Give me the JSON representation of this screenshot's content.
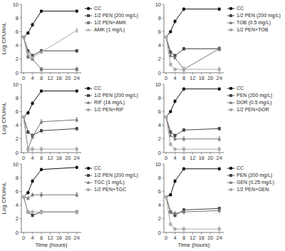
{
  "chart_data": [
    {
      "type": "line",
      "x": [
        0,
        2,
        4,
        8,
        24
      ],
      "xlim": [
        -1,
        26
      ],
      "xticks": [
        0,
        4,
        8,
        12,
        16,
        20,
        24
      ],
      "ylim": [
        0,
        10
      ],
      "yticks": [
        0,
        2,
        4,
        6,
        8,
        10
      ],
      "ylabel": "Log CFU/mL",
      "legend": "right",
      "grid": false,
      "series": [
        {
          "name": "CC",
          "color": "#111111",
          "marker": "circle",
          "values": [
            5.2,
            5.8,
            7.0,
            9.0,
            9.0
          ],
          "errors": [
            0.15,
            0.15,
            0.2,
            0.15,
            0.15
          ]
        },
        {
          "name": "1/2 PEN (200 mg/L)",
          "color": "#444444",
          "marker": "square",
          "values": [
            5.2,
            3.2,
            2.5,
            3.2,
            3.2
          ],
          "errors": [
            0.15,
            0.2,
            0.2,
            0.2,
            0.2
          ]
        },
        {
          "name": "1/2 PEN+AMK",
          "color": "#777777",
          "marker": "square",
          "values": [
            5.2,
            2.3,
            2.0,
            0.5,
            0.5
          ],
          "errors": [
            0.15,
            0.2,
            0.2,
            0.3,
            0.3
          ]
        },
        {
          "name": "AMK (1 mg/L)",
          "color": "#aaaaaa",
          "marker": "triangle",
          "values": [
            5.2,
            2.8,
            2.2,
            3.0,
            6.2
          ],
          "errors": [
            0.15,
            0.2,
            0.2,
            0.2,
            0.3
          ]
        }
      ]
    },
    {
      "type": "line",
      "x": [
        0,
        2,
        4,
        8,
        24
      ],
      "xlim": [
        -1,
        26
      ],
      "xticks": [
        0,
        4,
        8,
        12,
        16,
        20,
        24
      ],
      "ylim": [
        0,
        10
      ],
      "yticks": [
        0,
        2,
        4,
        6,
        8,
        10
      ],
      "legend": "right",
      "grid": false,
      "series": [
        {
          "name": "CC",
          "color": "#111111",
          "marker": "circle",
          "values": [
            5.2,
            6.0,
            7.5,
            9.3,
            9.3
          ],
          "errors": [
            0.15,
            0.15,
            0.2,
            0.15,
            0.15
          ]
        },
        {
          "name": "1/2 PEN (200 mg/L)",
          "color": "#444444",
          "marker": "square",
          "values": [
            5.2,
            3.0,
            2.5,
            3.5,
            3.5
          ],
          "errors": [
            0.15,
            0.2,
            0.2,
            0.2,
            0.2
          ]
        },
        {
          "name": "TOB (0.5 mg/L)",
          "color": "#777777",
          "marker": "triangle",
          "values": [
            5.2,
            2.5,
            2.2,
            0.5,
            3.5
          ],
          "errors": [
            0.15,
            0.2,
            0.2,
            0.3,
            0.3
          ]
        },
        {
          "name": "1/2 PEN+TOB",
          "color": "#aaaaaa",
          "marker": "square",
          "values": [
            5.2,
            1.2,
            0.5,
            0.5,
            0.5
          ],
          "errors": [
            0.15,
            0.2,
            0.2,
            0.3,
            0.3
          ]
        }
      ]
    },
    {
      "type": "line",
      "x": [
        0,
        2,
        4,
        8,
        24
      ],
      "xlim": [
        -1,
        26
      ],
      "xticks": [
        0,
        4,
        8,
        12,
        16,
        20,
        24
      ],
      "ylim": [
        0,
        10
      ],
      "yticks": [
        0,
        2,
        4,
        6,
        8,
        10
      ],
      "ylabel": "Log CFU/mL",
      "legend": "right",
      "grid": false,
      "series": [
        {
          "name": "CC",
          "color": "#111111",
          "marker": "circle",
          "values": [
            5.2,
            5.8,
            7.2,
            9.0,
            9.0
          ],
          "errors": [
            0.15,
            0.15,
            0.2,
            0.15,
            0.15
          ]
        },
        {
          "name": "1/2 PEN (200 mg/L)",
          "color": "#444444",
          "marker": "square",
          "values": [
            5.2,
            3.0,
            2.5,
            3.2,
            3.5
          ],
          "errors": [
            0.15,
            0.2,
            0.2,
            0.2,
            0.2
          ]
        },
        {
          "name": "RIF (16 mg/L)",
          "color": "#777777",
          "marker": "triangle",
          "values": [
            5.2,
            0.5,
            2.3,
            4.5,
            4.8
          ],
          "errors": [
            0.15,
            0.3,
            0.3,
            0.3,
            0.3
          ]
        },
        {
          "name": "1/2 PEN+RIF",
          "color": "#aaaaaa",
          "marker": "square",
          "values": [
            5.2,
            0.5,
            0.5,
            0.5,
            0.5
          ],
          "errors": [
            0.15,
            0.3,
            0.3,
            0.3,
            0.3
          ]
        }
      ]
    },
    {
      "type": "line",
      "x": [
        0,
        2,
        4,
        8,
        24
      ],
      "xlim": [
        -1,
        26
      ],
      "xticks": [
        0,
        4,
        8,
        12,
        16,
        20,
        24
      ],
      "ylim": [
        0,
        10
      ],
      "yticks": [
        0,
        2,
        4,
        6,
        8,
        10
      ],
      "legend": "right",
      "grid": false,
      "series": [
        {
          "name": "CC",
          "color": "#111111",
          "marker": "circle",
          "values": [
            5.2,
            6.0,
            7.5,
            9.3,
            9.3
          ],
          "errors": [
            0.15,
            0.15,
            0.2,
            0.15,
            0.15
          ]
        },
        {
          "name": "PEN (200 mg/L)",
          "color": "#444444",
          "marker": "square",
          "values": [
            5.2,
            3.0,
            2.5,
            3.3,
            3.5
          ],
          "errors": [
            0.15,
            0.2,
            0.2,
            0.2,
            0.2
          ]
        },
        {
          "name": "DOR (0.5 mg/L)",
          "color": "#777777",
          "marker": "triangle",
          "values": [
            5.2,
            2.5,
            2.0,
            2.0,
            2.0
          ],
          "errors": [
            0.15,
            0.2,
            0.2,
            0.3,
            0.3
          ]
        },
        {
          "name": "1/2 PEN+DOR",
          "color": "#aaaaaa",
          "marker": "square",
          "values": [
            5.2,
            1.2,
            0.5,
            0.5,
            0.5
          ],
          "errors": [
            0.15,
            0.2,
            0.2,
            0.3,
            0.3
          ]
        }
      ]
    },
    {
      "type": "line",
      "x": [
        0,
        2,
        4,
        8,
        24
      ],
      "xlim": [
        -1,
        26
      ],
      "xticks": [
        0,
        4,
        8,
        12,
        16,
        20,
        24
      ],
      "ylim": [
        0,
        10
      ],
      "yticks": [
        0,
        2,
        4,
        6,
        8,
        10
      ],
      "xlabel": "Time (hours)",
      "ylabel": "Log CFU/mL",
      "legend": "right",
      "grid": false,
      "series": [
        {
          "name": "CC",
          "color": "#111111",
          "marker": "circle",
          "values": [
            5.2,
            5.8,
            7.5,
            9.2,
            9.5
          ],
          "errors": [
            0.15,
            0.15,
            0.2,
            0.15,
            0.15
          ]
        },
        {
          "name": "1/2 PEN (200 mg/L)",
          "color": "#444444",
          "marker": "square",
          "values": [
            5.2,
            3.0,
            2.5,
            3.0,
            3.0
          ],
          "errors": [
            0.15,
            0.2,
            0.2,
            0.2,
            0.2
          ]
        },
        {
          "name": "TGC (1 mg/L)",
          "color": "#777777",
          "marker": "triangle",
          "values": [
            5.2,
            5.0,
            5.5,
            5.5,
            5.5
          ],
          "errors": [
            0.15,
            0.2,
            0.2,
            0.3,
            0.3
          ]
        },
        {
          "name": "1/2 PEN+TGC",
          "color": "#aaaaaa",
          "marker": "square",
          "values": [
            5.2,
            3.0,
            3.0,
            3.0,
            3.0
          ],
          "errors": [
            0.15,
            0.2,
            0.2,
            0.3,
            0.3
          ]
        }
      ]
    },
    {
      "type": "line",
      "x": [
        0,
        2,
        4,
        8,
        24
      ],
      "xlim": [
        -1,
        26
      ],
      "xticks": [
        0,
        4,
        8,
        12,
        16,
        20,
        24
      ],
      "ylim": [
        0,
        10
      ],
      "yticks": [
        0,
        2,
        4,
        6,
        8,
        10
      ],
      "xlabel": "Time (hours)",
      "legend": "right",
      "grid": false,
      "series": [
        {
          "name": "CC",
          "color": "#111111",
          "marker": "circle",
          "values": [
            5.2,
            5.5,
            7.5,
            9.3,
            9.3
          ],
          "errors": [
            0.15,
            0.15,
            0.2,
            0.15,
            0.15
          ]
        },
        {
          "name": "PEN (200 mg/L)",
          "color": "#444444",
          "marker": "square",
          "values": [
            5.2,
            3.0,
            2.5,
            3.3,
            3.5
          ],
          "errors": [
            0.15,
            0.2,
            0.2,
            0.2,
            0.2
          ]
        },
        {
          "name": "GEN (0.25 mg/L)",
          "color": "#777777",
          "marker": "triangle",
          "values": [
            5.2,
            3.0,
            2.8,
            3.0,
            3.2
          ],
          "errors": [
            0.15,
            0.2,
            0.2,
            0.3,
            0.3
          ]
        },
        {
          "name": "1/2 PEN+GEN",
          "color": "#aaaaaa",
          "marker": "square",
          "values": [
            5.2,
            1.2,
            0.5,
            0.5,
            0.5
          ],
          "errors": [
            0.15,
            0.2,
            0.2,
            0.3,
            0.3
          ]
        }
      ]
    }
  ]
}
